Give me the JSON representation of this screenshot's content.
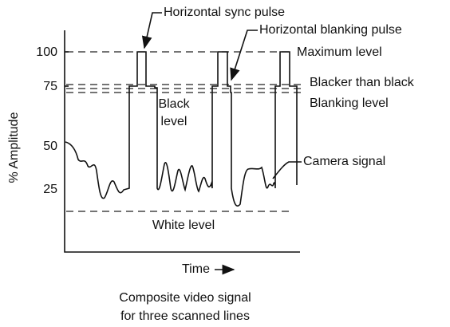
{
  "diagram": {
    "y_axis_label": "% Amplitude",
    "y_ticks": [
      "100",
      "75",
      "50",
      "25"
    ],
    "x_axis_label": "Time",
    "labels": {
      "sync": "Horizontal sync pulse",
      "blanking_pulse": "Horizontal blanking pulse",
      "maximum": "Maximum level",
      "blacker": "Blacker than black",
      "blanking_level": "Blanking level",
      "black_level": [
        "Black",
        "level"
      ],
      "camera": "Camera signal",
      "white": "White level"
    },
    "caption": [
      "Composite video signal",
      "for three scanned lines"
    ]
  }
}
